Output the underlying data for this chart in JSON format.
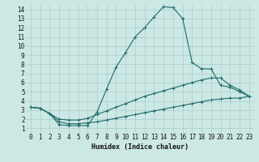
{
  "xlabel": "Humidex (Indice chaleur)",
  "xlim": [
    -0.5,
    23.5
  ],
  "ylim": [
    0.5,
    14.5
  ],
  "xticks": [
    0,
    1,
    2,
    3,
    4,
    5,
    6,
    7,
    8,
    9,
    10,
    11,
    12,
    13,
    14,
    15,
    16,
    17,
    18,
    19,
    20,
    21,
    22,
    23
  ],
  "yticks": [
    1,
    2,
    3,
    4,
    5,
    6,
    7,
    8,
    9,
    10,
    11,
    12,
    13,
    14
  ],
  "bg_color": "#cce8e4",
  "grid_color": "#aaccca",
  "line_color": "#1a6b6b",
  "line1_x": [
    0,
    1,
    2,
    3,
    4,
    5,
    6,
    7,
    8,
    9,
    10,
    11,
    12,
    13,
    14,
    15,
    16,
    17,
    18,
    19,
    20,
    21,
    22,
    23
  ],
  "line1_y": [
    3.3,
    3.2,
    2.6,
    1.4,
    1.3,
    1.3,
    1.3,
    2.8,
    5.3,
    7.7,
    9.3,
    11.0,
    12.0,
    13.2,
    14.3,
    14.2,
    13.0,
    8.2,
    7.5,
    7.5,
    5.7,
    5.5,
    5.0,
    4.5
  ],
  "line2_x": [
    0,
    1,
    2,
    3,
    4,
    5,
    6,
    7,
    8,
    9,
    10,
    11,
    12,
    13,
    14,
    15,
    16,
    17,
    18,
    19,
    20,
    21,
    22,
    23
  ],
  "line2_y": [
    3.3,
    3.2,
    2.6,
    2.0,
    1.9,
    1.9,
    2.1,
    2.5,
    2.9,
    3.3,
    3.7,
    4.1,
    4.5,
    4.8,
    5.1,
    5.4,
    5.7,
    6.0,
    6.3,
    6.5,
    6.5,
    5.7,
    5.2,
    4.5
  ],
  "line3_x": [
    0,
    1,
    2,
    3,
    4,
    5,
    6,
    7,
    8,
    9,
    10,
    11,
    12,
    13,
    14,
    15,
    16,
    17,
    18,
    19,
    20,
    21,
    22,
    23
  ],
  "line3_y": [
    3.3,
    3.2,
    2.6,
    1.7,
    1.5,
    1.5,
    1.6,
    1.7,
    1.9,
    2.1,
    2.3,
    2.5,
    2.7,
    2.9,
    3.1,
    3.3,
    3.5,
    3.7,
    3.9,
    4.1,
    4.2,
    4.3,
    4.3,
    4.5
  ]
}
